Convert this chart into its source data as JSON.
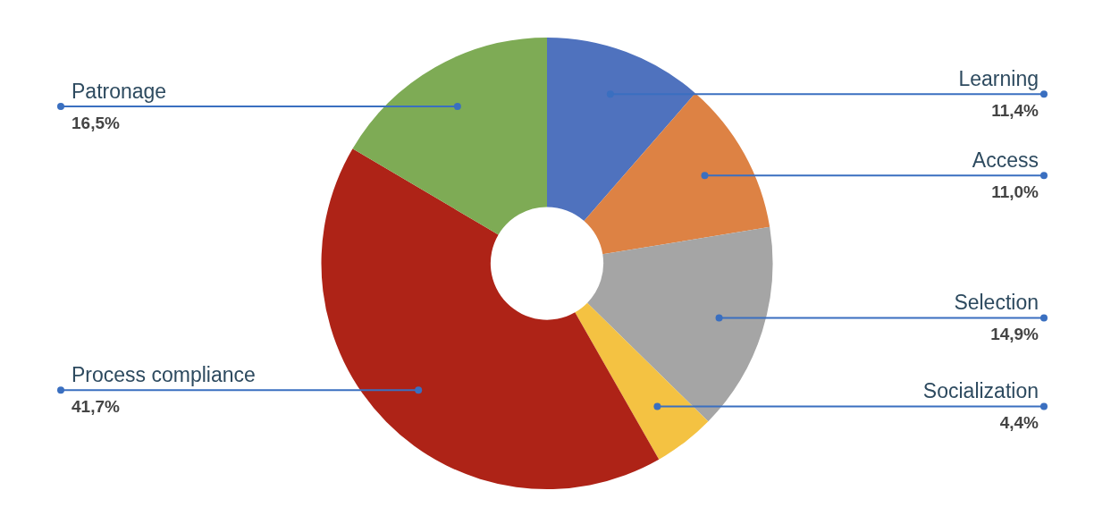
{
  "chart_data": {
    "type": "donut",
    "categories": [
      "Learning",
      "Access",
      "Selection",
      "Socialization",
      "Process compliance",
      "Patronage"
    ],
    "values": [
      11.4,
      11.0,
      14.9,
      4.4,
      41.7,
      16.5
    ],
    "value_labels": [
      "11,4%",
      "11,0%",
      "14,9%",
      "4,4%",
      "41,7%",
      "16,5%"
    ],
    "colors": [
      "#4f72be",
      "#dd8244",
      "#a5a5a5",
      "#f4c242",
      "#ae2317",
      "#7eab55"
    ],
    "legend": false
  }
}
